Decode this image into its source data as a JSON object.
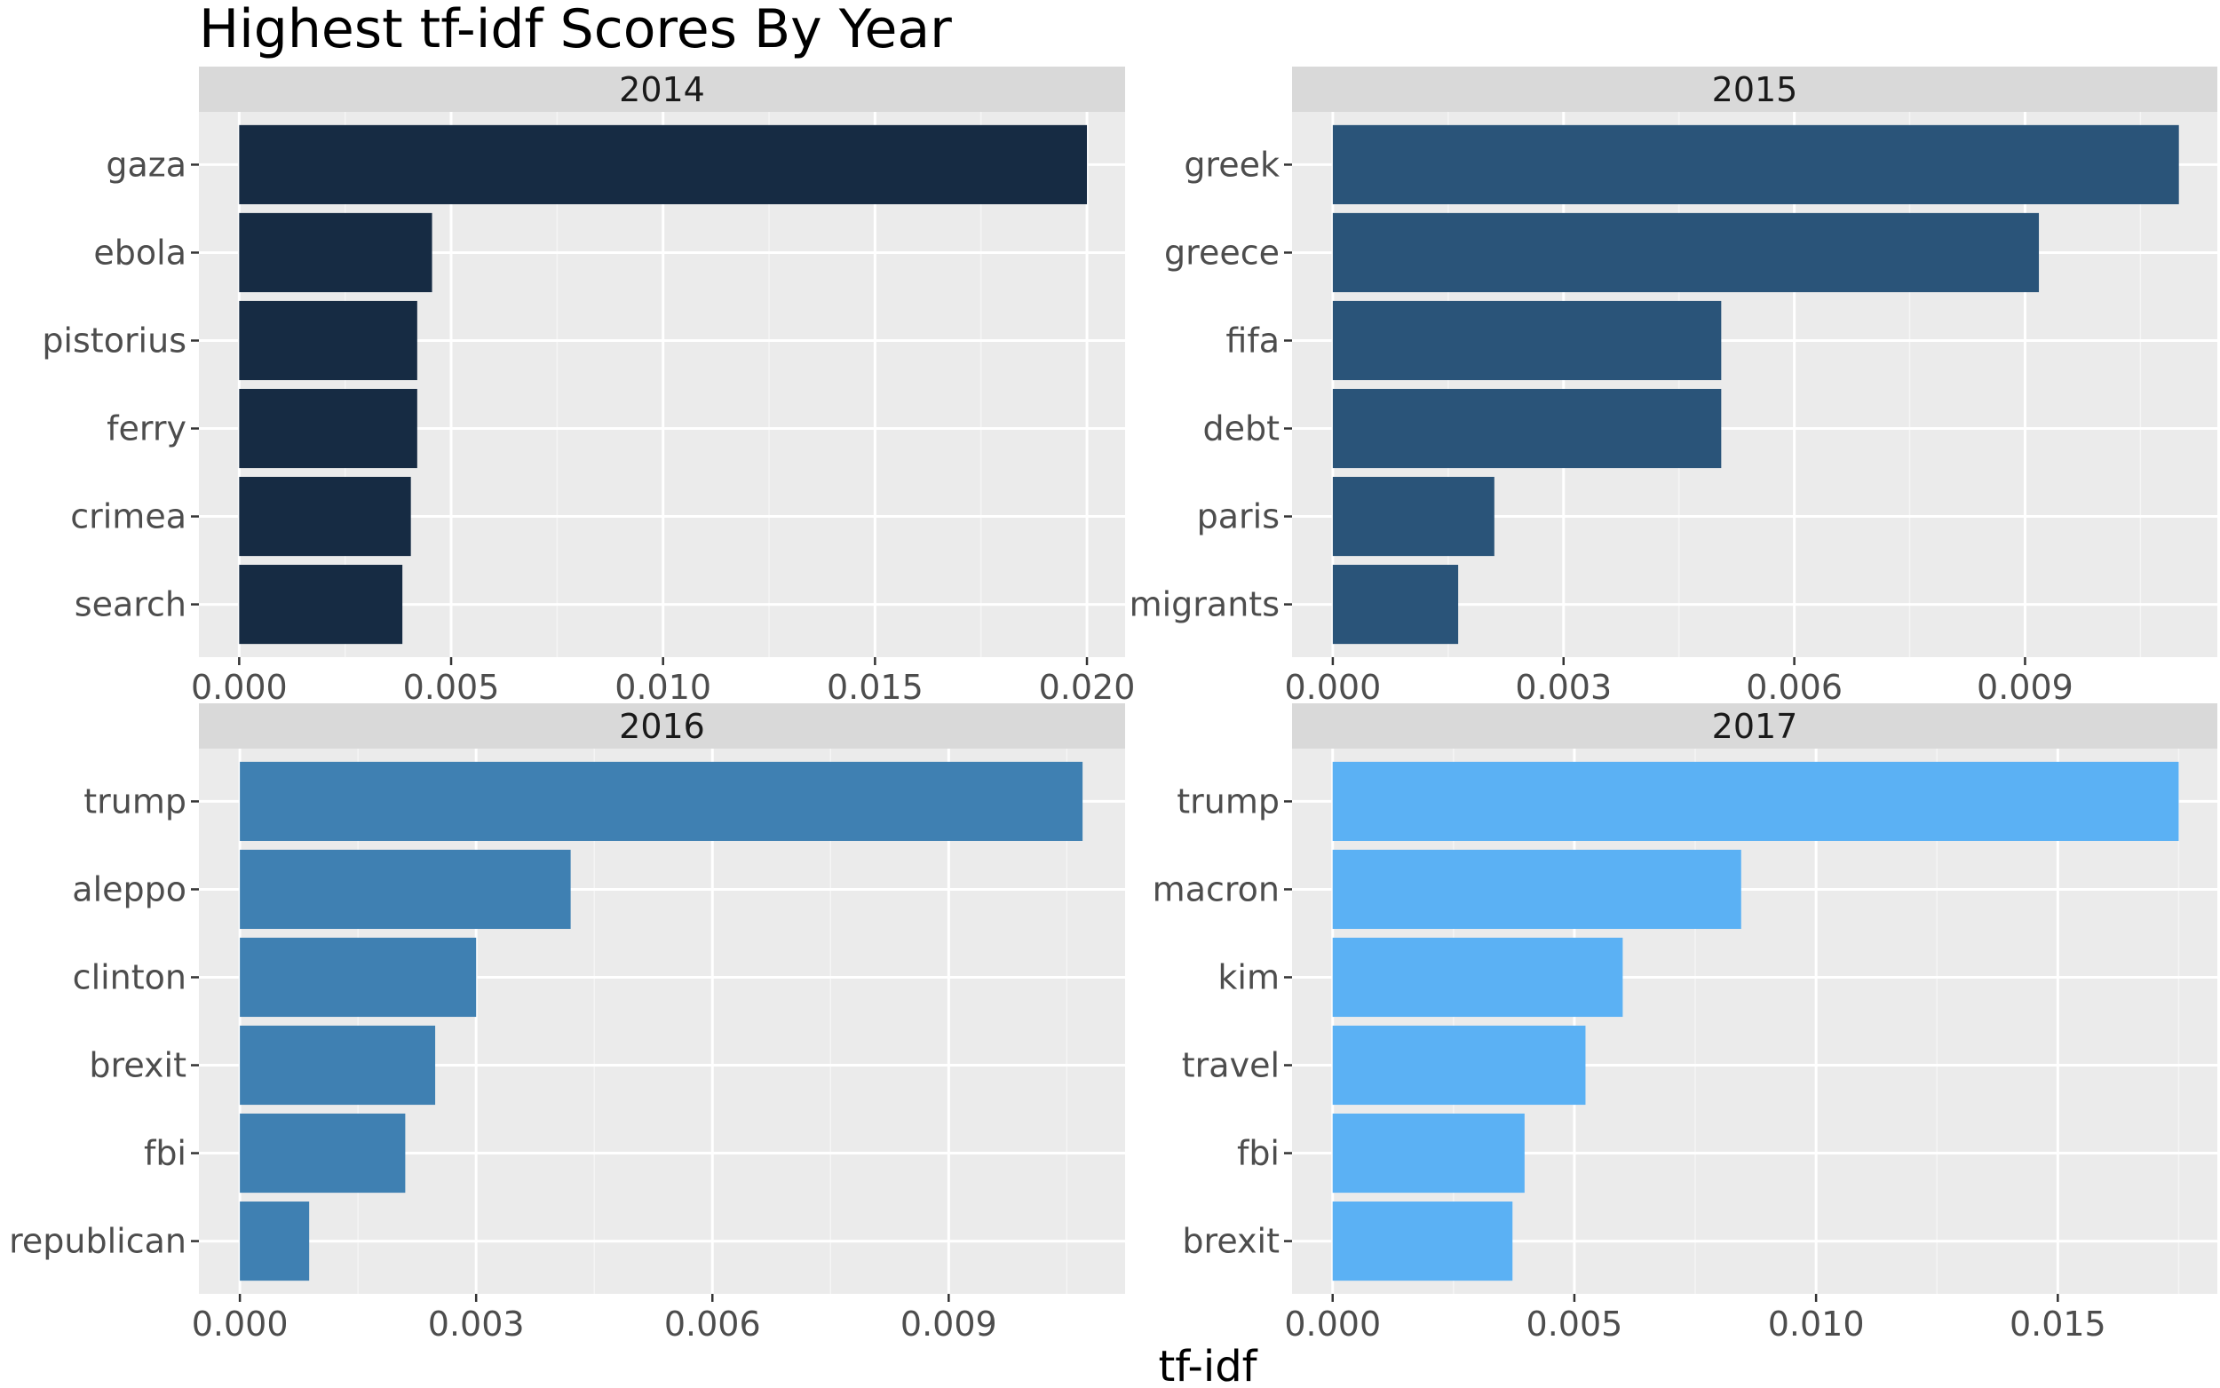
{
  "title": "Highest tf-idf Scores By Year",
  "xlabel": "tf-idf",
  "chart_data": [
    {
      "type": "bar",
      "orientation": "horizontal",
      "panel": "2014",
      "color": "#162B43",
      "categories": [
        "gaza",
        "ebola",
        "pistorius",
        "ferry",
        "crimea",
        "search"
      ],
      "values": [
        0.02,
        0.00455,
        0.0042,
        0.0042,
        0.00405,
        0.00385
      ],
      "xlim": [
        -0.00095,
        0.0209
      ],
      "xticks": [
        0.0,
        0.005,
        0.01,
        0.015,
        0.02
      ],
      "xtick_labels": [
        "0.000",
        "0.005",
        "0.010",
        "0.015",
        "0.020"
      ]
    },
    {
      "type": "bar",
      "orientation": "horizontal",
      "panel": "2015",
      "color": "#2A5479",
      "categories": [
        "greek",
        "greece",
        "fifa",
        "debt",
        "paris",
        "migrants"
      ],
      "values": [
        0.011,
        0.00918,
        0.00505,
        0.00505,
        0.0021,
        0.00163
      ],
      "xlim": [
        -0.00053,
        0.0115
      ],
      "xticks": [
        0.0,
        0.003,
        0.006,
        0.009
      ],
      "xtick_labels": [
        "0.000",
        "0.003",
        "0.006",
        "0.009"
      ]
    },
    {
      "type": "bar",
      "orientation": "horizontal",
      "panel": "2016",
      "color": "#3F80B2",
      "categories": [
        "trump",
        "aleppo",
        "clinton",
        "brexit",
        "fbi",
        "republican"
      ],
      "values": [
        0.0107,
        0.0042,
        0.003,
        0.00248,
        0.0021,
        0.00088
      ],
      "xlim": [
        -0.00052,
        0.01124
      ],
      "xticks": [
        0.0,
        0.003,
        0.006,
        0.009
      ],
      "xtick_labels": [
        "0.000",
        "0.003",
        "0.006",
        "0.009"
      ]
    },
    {
      "type": "bar",
      "orientation": "horizontal",
      "panel": "2017",
      "color": "#5BB1F4",
      "categories": [
        "trump",
        "macron",
        "kim",
        "travel",
        "fbi",
        "brexit"
      ],
      "values": [
        0.0175,
        0.00845,
        0.006,
        0.00523,
        0.00397,
        0.00372
      ],
      "xlim": [
        -0.00084,
        0.0183
      ],
      "xticks": [
        0.0,
        0.005,
        0.01,
        0.015
      ],
      "xtick_labels": [
        "0.000",
        "0.005",
        "0.010",
        "0.015"
      ]
    }
  ]
}
